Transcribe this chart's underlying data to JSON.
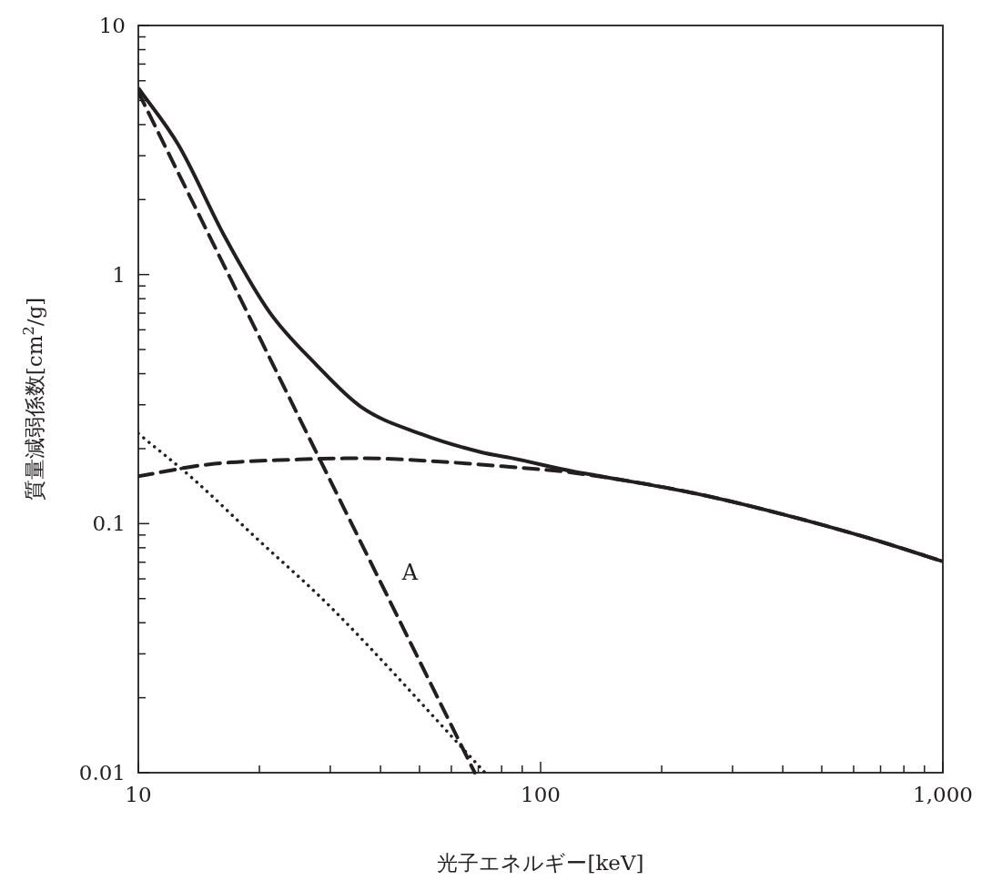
{
  "chart_data": {
    "type": "line",
    "xlabel": "光子エネルギー[keV]",
    "ylabel": "質量減弱係数[cm$^{2}$/g]",
    "log": "xy",
    "grid": false,
    "xlim": [
      10,
      1000
    ],
    "xticks": [
      10,
      100,
      {
        "value": 1000,
        "label": "1,000"
      }
    ],
    "ylim": [
      0.01,
      10
    ],
    "yticks": [
      0.01,
      0.1,
      1,
      10
    ],
    "series": [
      {
        "color": "#231f20",
        "line_style": "solid",
        "x": [
          10,
          12.6,
          16.4,
          21.2,
          27.6,
          35.8,
          50.5,
          71.7,
          83.8,
          120.6,
          141,
          238,
          400,
          673,
          1000
        ],
        "values": [
          5.61,
          3.3,
          1.42,
          0.706,
          0.437,
          0.294,
          0.229,
          0.193,
          0.184,
          0.162,
          0.155,
          0.133,
          0.109,
          0.0863,
          0.0705
        ]
      },
      {
        "name": "A",
        "color": "#231f20",
        "line_style": "dashed",
        "x": [
          10,
          25.3,
          68.6
        ],
        "values": [
          5.4,
          0.26,
          0.01
        ]
      },
      {
        "color": "#231f20",
        "line_style": "dashed",
        "x": [
          10,
          15,
          25,
          35.8,
          60.3,
          83.8,
          120.6,
          238,
          400,
          673,
          1000
        ],
        "values": [
          0.155,
          0.173,
          0.181,
          0.183,
          0.176,
          0.169,
          0.16,
          0.133,
          0.109,
          0.0863,
          0.0705
        ]
      },
      {
        "color": "#231f20",
        "line_style": "dotted",
        "x": [
          10,
          13.7,
          19.5,
          30,
          72.8
        ],
        "values": [
          0.23,
          0.151,
          0.0885,
          0.0464,
          0.01
        ]
      }
    ]
  }
}
